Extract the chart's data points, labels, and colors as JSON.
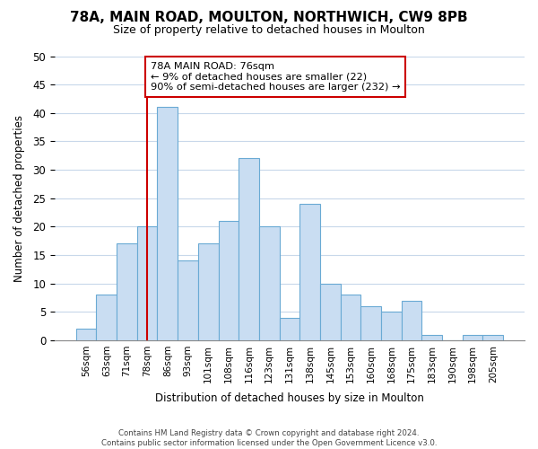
{
  "title": "78A, MAIN ROAD, MOULTON, NORTHWICH, CW9 8PB",
  "subtitle": "Size of property relative to detached houses in Moulton",
  "xlabel": "Distribution of detached houses by size in Moulton",
  "ylabel": "Number of detached properties",
  "bar_labels": [
    "56sqm",
    "63sqm",
    "71sqm",
    "78sqm",
    "86sqm",
    "93sqm",
    "101sqm",
    "108sqm",
    "116sqm",
    "123sqm",
    "131sqm",
    "138sqm",
    "145sqm",
    "153sqm",
    "160sqm",
    "168sqm",
    "175sqm",
    "183sqm",
    "190sqm",
    "198sqm",
    "205sqm"
  ],
  "bar_values": [
    2,
    8,
    17,
    20,
    41,
    14,
    17,
    21,
    32,
    20,
    4,
    24,
    10,
    8,
    6,
    5,
    7,
    1,
    0,
    1,
    1
  ],
  "bar_color": "#c9ddf2",
  "bar_edge_color": "#6aaad4",
  "ref_line_index": 3,
  "ref_line_color": "#cc0000",
  "ylim": [
    0,
    50
  ],
  "yticks": [
    0,
    5,
    10,
    15,
    20,
    25,
    30,
    35,
    40,
    45,
    50
  ],
  "annotation_title": "78A MAIN ROAD: 76sqm",
  "annotation_line1": "← 9% of detached houses are smaller (22)",
  "annotation_line2": "90% of semi-detached houses are larger (232) →",
  "annotation_box_facecolor": "#ffffff",
  "annotation_box_edgecolor": "#cc0000",
  "footer_line1": "Contains HM Land Registry data © Crown copyright and database right 2024.",
  "footer_line2": "Contains public sector information licensed under the Open Government Licence v3.0.",
  "background_color": "#ffffff",
  "grid_color": "#c8d8ea"
}
